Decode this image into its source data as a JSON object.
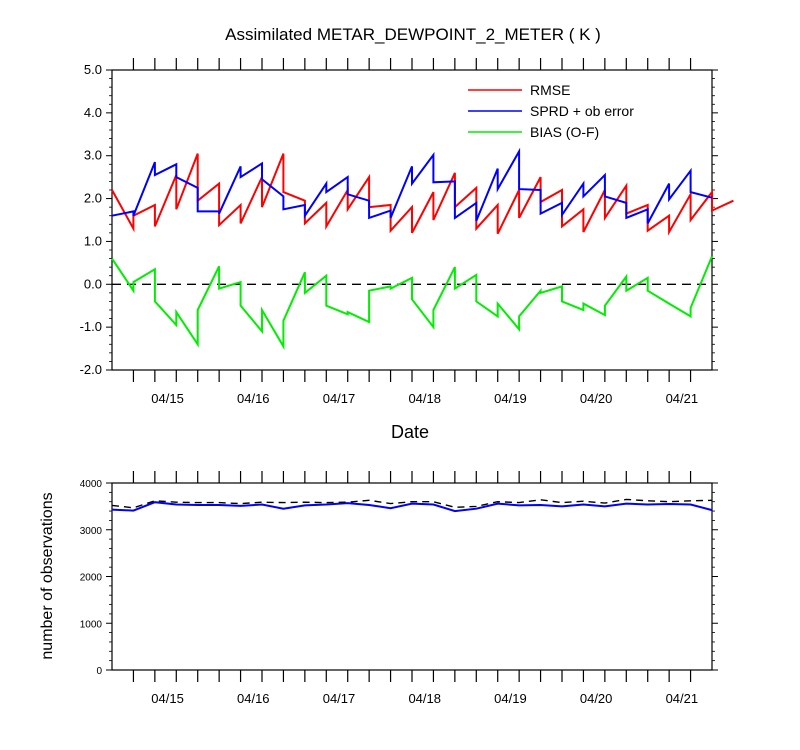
{
  "chart_data": [
    {
      "type": "line",
      "title": "Assimilated METAR_DEWPOINT_2_METER ( K )",
      "xlabel": "Date",
      "ylabel": "",
      "ylim": [
        -2.0,
        5.0
      ],
      "yticks": [
        "-2.0",
        "-1.0",
        "0.0",
        "1.0",
        "2.0",
        "3.0",
        "4.0",
        "5.0"
      ],
      "xlim": [
        0,
        28
      ],
      "x_tick_labels": [
        "04/15",
        "04/16",
        "04/17",
        "04/18",
        "04/19",
        "04/20",
        "04/21"
      ],
      "legend_position": "top-right",
      "reference_line": 0.0,
      "series": [
        {
          "name": "RMSE",
          "color": "#ff0000",
          "segments": [
            [
              2.2,
              1.3
            ],
            [
              1.6,
              1.85
            ],
            [
              1.35,
              2.55
            ],
            [
              1.75,
              3.05
            ],
            [
              1.95,
              2.35
            ],
            [
              1.38,
              1.85
            ],
            [
              1.42,
              2.5
            ],
            [
              1.8,
              3.05
            ],
            [
              2.15,
              1.95
            ],
            [
              1.42,
              1.9
            ],
            [
              1.35,
              2.2
            ],
            [
              1.75,
              2.5
            ],
            [
              1.8,
              1.85
            ],
            [
              1.25,
              1.8
            ],
            [
              1.2,
              2.15
            ],
            [
              1.5,
              2.6
            ],
            [
              1.8,
              2.25
            ],
            [
              1.3,
              1.85
            ],
            [
              1.18,
              2.2
            ],
            [
              1.55,
              2.5
            ],
            [
              1.92,
              2.2
            ],
            [
              1.35,
              1.75
            ],
            [
              1.22,
              2.2
            ],
            [
              1.55,
              2.3
            ],
            [
              1.65,
              1.85
            ],
            [
              1.25,
              1.6
            ],
            [
              1.22,
              2.1
            ],
            [
              1.5,
              2.15
            ],
            [
              1.72,
              1.95
            ]
          ]
        },
        {
          "name": "SPRD + ob error",
          "color": "#0000ff",
          "segments": [
            [
              1.6,
              1.7
            ],
            [
              1.6,
              2.85
            ],
            [
              2.55,
              2.8
            ],
            [
              2.5,
              2.25
            ],
            [
              1.7,
              1.7
            ],
            [
              1.65,
              2.75
            ],
            [
              2.5,
              2.82
            ],
            [
              2.45,
              2.05
            ],
            [
              1.75,
              1.85
            ],
            [
              1.6,
              2.35
            ],
            [
              2.15,
              2.5
            ],
            [
              2.1,
              1.95
            ],
            [
              1.55,
              1.72
            ],
            [
              1.55,
              2.75
            ],
            [
              2.35,
              3.02
            ],
            [
              2.38,
              2.4
            ],
            [
              1.55,
              1.9
            ],
            [
              1.48,
              2.7
            ],
            [
              2.22,
              3.1
            ],
            [
              2.22,
              2.2
            ],
            [
              1.65,
              1.9
            ],
            [
              1.62,
              2.35
            ],
            [
              2.05,
              2.55
            ],
            [
              2.05,
              1.9
            ],
            [
              1.55,
              1.75
            ],
            [
              1.42,
              2.35
            ],
            [
              1.98,
              2.65
            ],
            [
              2.15,
              2.02
            ]
          ]
        },
        {
          "name": "BIAS (O-F)",
          "color": "#00ee00",
          "segments": [
            [
              0.6,
              -0.15
            ],
            [
              0.05,
              0.35
            ],
            [
              -0.4,
              -0.95
            ],
            [
              -0.65,
              -1.4
            ],
            [
              -0.6,
              0.42
            ],
            [
              -0.1,
              0.05
            ],
            [
              -0.5,
              -1.1
            ],
            [
              -0.6,
              -1.45
            ],
            [
              -0.85,
              0.28
            ],
            [
              -0.2,
              0.2
            ],
            [
              -0.5,
              -0.7
            ],
            [
              -0.65,
              -0.88
            ],
            [
              -0.15,
              -0.05
            ],
            [
              -0.1,
              0.15
            ],
            [
              -0.35,
              -1.0
            ],
            [
              -0.6,
              0.4
            ],
            [
              -0.1,
              0.22
            ],
            [
              -0.4,
              -0.75
            ],
            [
              -0.45,
              -1.05
            ],
            [
              -0.75,
              -0.15
            ],
            [
              -0.2,
              -0.05
            ],
            [
              -0.4,
              -0.6
            ],
            [
              -0.45,
              -0.72
            ],
            [
              -0.5,
              0.18
            ],
            [
              -0.15,
              0.15
            ],
            [
              -0.15,
              -0.45
            ],
            [
              -0.45,
              -0.75
            ],
            [
              -0.55,
              0.65
            ]
          ]
        }
      ]
    },
    {
      "type": "line",
      "title": "",
      "xlabel": "",
      "ylabel": "number of observations",
      "ylim": [
        0,
        4000
      ],
      "yticks": [
        "0",
        "1000",
        "2000",
        "3000",
        "4000"
      ],
      "xlim": [
        0,
        28
      ],
      "x_tick_labels": [
        "04/15",
        "04/16",
        "04/17",
        "04/18",
        "04/19",
        "04/20",
        "04/21"
      ],
      "series": [
        {
          "name": "",
          "color": "#0000ff",
          "style": "solid",
          "x": [
            0,
            1,
            2,
            3,
            4,
            5,
            6,
            7,
            8,
            9,
            10,
            11,
            12,
            13,
            14,
            15,
            16,
            17,
            18,
            19,
            20,
            21,
            22,
            23,
            24,
            25,
            26,
            27,
            28
          ],
          "values": [
            3430,
            3410,
            3590,
            3540,
            3530,
            3530,
            3510,
            3540,
            3450,
            3520,
            3540,
            3570,
            3530,
            3460,
            3560,
            3540,
            3400,
            3450,
            3560,
            3520,
            3530,
            3500,
            3540,
            3500,
            3560,
            3540,
            3550,
            3540,
            3420
          ]
        },
        {
          "name": "",
          "color": "#000000",
          "style": "dashed",
          "x": [
            0,
            1,
            2,
            3,
            4,
            5,
            6,
            7,
            8,
            9,
            10,
            11,
            12,
            13,
            14,
            15,
            16,
            17,
            18,
            19,
            20,
            21,
            22,
            23,
            24,
            25,
            26,
            27,
            28
          ],
          "values": [
            3520,
            3470,
            3620,
            3590,
            3580,
            3580,
            3560,
            3590,
            3580,
            3590,
            3580,
            3590,
            3630,
            3560,
            3600,
            3600,
            3480,
            3500,
            3600,
            3580,
            3640,
            3580,
            3610,
            3570,
            3650,
            3620,
            3600,
            3620,
            3630
          ]
        }
      ]
    }
  ]
}
